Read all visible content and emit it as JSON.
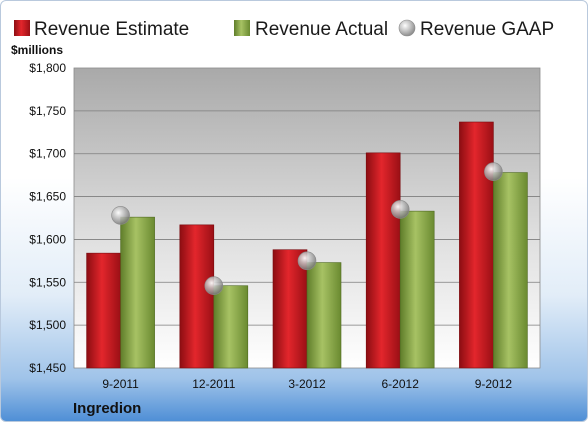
{
  "chart_data": {
    "type": "bar",
    "title": "",
    "company": "Ingredion",
    "ylabel": "$millions",
    "xlabel": "",
    "categories": [
      "9-2011",
      "12-2011",
      "3-2012",
      "6-2012",
      "9-2012"
    ],
    "series": [
      {
        "name": "Revenue Estimate",
        "kind": "bar",
        "color": "#c8161d",
        "values": [
          1584,
          1617,
          1588,
          1701,
          1737
        ]
      },
      {
        "name": "Revenue Actual",
        "kind": "bar",
        "color": "#8bab4a",
        "values": [
          1626,
          1546,
          1573,
          1633,
          1678
        ]
      },
      {
        "name": "Revenue GAAP",
        "kind": "marker",
        "color": "#a9a9a9",
        "values": [
          1628,
          1546,
          1575,
          1635,
          1679
        ]
      }
    ],
    "ylim": [
      1450,
      1800
    ],
    "yticks": [
      "$1,450",
      "$1,500",
      "$1,550",
      "$1,600",
      "$1,650",
      "$1,700",
      "$1,750",
      "$1,800"
    ],
    "ytick_values": [
      1450,
      1500,
      1550,
      1600,
      1650,
      1700,
      1750,
      1800
    ],
    "grid": true,
    "legend_position": "top"
  }
}
